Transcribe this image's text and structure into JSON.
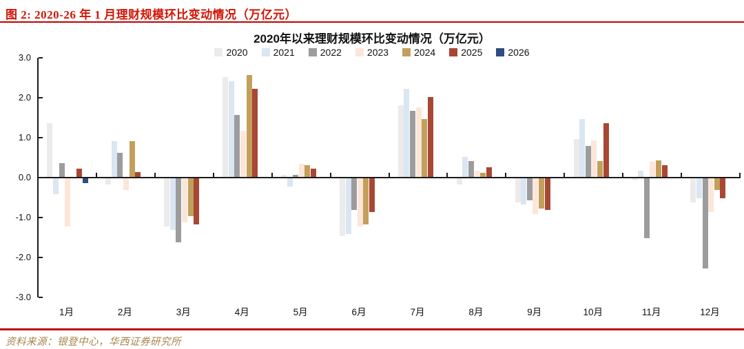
{
  "figure": {
    "caption": "图 2: 2020-26 年 1 月理财规模环比变动情况（万亿元）",
    "source": "资料来源：银登中心，华西证券研究所"
  },
  "colors": {
    "caption_red": "#d21404",
    "divider_red": "#c00000",
    "source_tan": "#a8854e",
    "axis_black": "#1a1a1a"
  },
  "chart_data": {
    "type": "bar",
    "title": "2020年以来理财规模环比变动情况（万亿元）",
    "ylabel": "",
    "xlabel": "",
    "ylim": [
      -3.0,
      3.0
    ],
    "yticks": [
      3.0,
      2.0,
      1.0,
      0.0,
      -1.0,
      -2.0,
      -3.0
    ],
    "grid": false,
    "legend_position": "top-center",
    "categories": [
      "1月",
      "2月",
      "3月",
      "4月",
      "5月",
      "6月",
      "7月",
      "8月",
      "9月",
      "10月",
      "11月",
      "12月"
    ],
    "series": [
      {
        "name": "2020",
        "color": "#ebebeb",
        "values": [
          1.35,
          -0.15,
          -1.2,
          2.5,
          0.05,
          -1.45,
          1.8,
          -0.15,
          -0.6,
          0.95,
          -0.05,
          -0.6
        ]
      },
      {
        "name": "2021",
        "color": "#dae6f2",
        "values": [
          -0.4,
          0.9,
          -1.3,
          2.4,
          -0.2,
          -1.4,
          2.2,
          0.5,
          -0.65,
          1.45,
          0.15,
          -0.5
        ]
      },
      {
        "name": "2022",
        "color": "#9c9c9c",
        "values": [
          0.35,
          0.6,
          -1.6,
          1.55,
          0.05,
          -0.8,
          1.65,
          0.4,
          -0.55,
          0.78,
          -1.5,
          -2.25
        ]
      },
      {
        "name": "2023",
        "color": "#fbe6d9",
        "values": [
          -1.2,
          -0.3,
          -1.1,
          1.15,
          0.33,
          -1.2,
          1.75,
          0.15,
          -0.9,
          0.92,
          0.38,
          -0.85
        ]
      },
      {
        "name": "2024",
        "color": "#c2a05c",
        "values": [
          0,
          0.9,
          -0.95,
          2.55,
          0.3,
          -1.15,
          1.45,
          0.1,
          -0.75,
          0.4,
          0.42,
          -0.3
        ]
      },
      {
        "name": "2025",
        "color": "#a84734",
        "values": [
          0.2,
          0.12,
          -1.15,
          2.2,
          0.2,
          -0.85,
          2.0,
          0.25,
          -0.8,
          1.35,
          0.3,
          -0.5
        ]
      },
      {
        "name": "2026",
        "color": "#2e4d80",
        "values": [
          -0.12,
          null,
          null,
          null,
          null,
          null,
          null,
          null,
          null,
          null,
          null,
          null
        ]
      }
    ]
  }
}
